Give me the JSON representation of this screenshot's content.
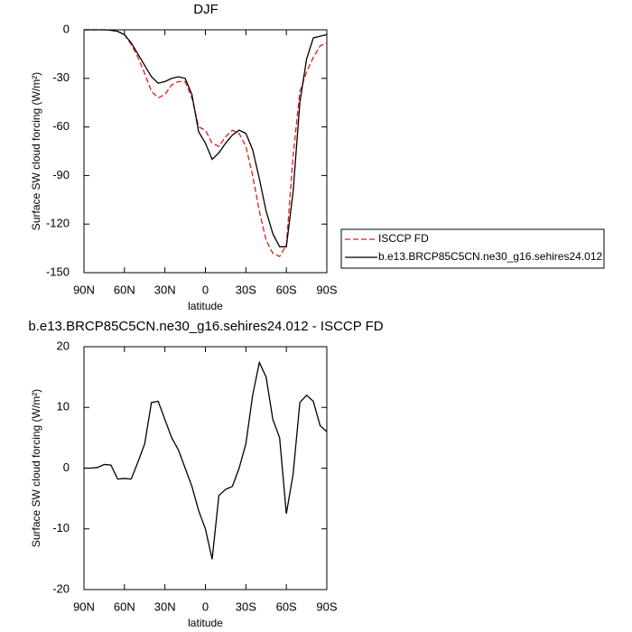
{
  "chart_data": [
    {
      "type": "line",
      "title": "DJF",
      "x_label": "latitude",
      "y_label": "Surface SW cloud forcing (W/m²)",
      "x": [
        90,
        85,
        80,
        75,
        70,
        65,
        60,
        55,
        50,
        45,
        40,
        35,
        30,
        25,
        20,
        15,
        10,
        5,
        0,
        -5,
        -10,
        -15,
        -20,
        -25,
        -30,
        -35,
        -40,
        -45,
        -50,
        -55,
        -60,
        -65,
        -70,
        -75,
        -80,
        -85,
        -90
      ],
      "series": [
        {
          "name": "ISCCP FD",
          "color": "#e41a1c",
          "dash": true,
          "values": [
            0,
            0,
            0,
            0,
            -0.3,
            -1,
            -3,
            -9,
            -17,
            -27,
            -38,
            -42,
            -40,
            -34,
            -32,
            -32,
            -42,
            -60,
            -62,
            -70,
            -72,
            -66,
            -62,
            -64,
            -72,
            -90,
            -112,
            -130,
            -138,
            -140,
            -133,
            -78,
            -38,
            -26,
            -17,
            -10,
            -8
          ]
        },
        {
          "name": "b.e13.BRCP85C5CN.ne30_g16.sehires24.012",
          "color": "#000000",
          "dash": false,
          "values": [
            0,
            0,
            0,
            0,
            -0.3,
            -1,
            -3,
            -8,
            -15,
            -22,
            -29,
            -33,
            -32,
            -30,
            -29,
            -30,
            -40,
            -63,
            -70,
            -80,
            -76,
            -70,
            -65,
            -62,
            -64,
            -74,
            -92,
            -112,
            -126,
            -134,
            -134,
            -100,
            -45,
            -18,
            -5,
            -4,
            -3
          ]
        }
      ],
      "xlim": [
        90,
        -90
      ],
      "xticks": [
        {
          "value": 90,
          "label": "90N"
        },
        {
          "value": 60,
          "label": "60N"
        },
        {
          "value": 30,
          "label": "30N"
        },
        0,
        {
          "value": -30,
          "label": "30S"
        },
        {
          "value": -60,
          "label": "60S"
        },
        {
          "value": -90,
          "label": "90S"
        }
      ],
      "ylim": [
        -150,
        0
      ],
      "yticks": [
        -150,
        -120,
        -90,
        -60,
        -30,
        0
      ],
      "legend": true
    },
    {
      "type": "line",
      "title": "b.e13.BRCP85C5CN.ne30_g16.sehires24.012 - ISCCP FD",
      "x_label": "latitude",
      "y_label": "Surface SW cloud forcing (W/m²)",
      "x": [
        90,
        85,
        80,
        75,
        70,
        65,
        60,
        55,
        50,
        45,
        40,
        35,
        30,
        25,
        20,
        15,
        10,
        5,
        0,
        -5,
        -10,
        -15,
        -20,
        -25,
        -30,
        -35,
        -40,
        -45,
        -50,
        -55,
        -60,
        -65,
        -70,
        -75,
        -80,
        -85,
        -90
      ],
      "series": [
        {
          "color": "#000000",
          "dash": false,
          "values": [
            0,
            0,
            0.1,
            0.6,
            0.5,
            -1.8,
            -1.7,
            -1.8,
            1,
            4,
            10.8,
            11,
            8,
            5,
            3,
            0,
            -3,
            -7,
            -10,
            -15,
            -4.5,
            -3.5,
            -3,
            0,
            4,
            12,
            17.4,
            15,
            8,
            5,
            -7.5,
            -1,
            10.8,
            12,
            11,
            7,
            6
          ]
        }
      ],
      "xlim": [
        90,
        -90
      ],
      "xticks": [
        {
          "value": 90,
          "label": "90N"
        },
        {
          "value": 60,
          "label": "60N"
        },
        {
          "value": 30,
          "label": "30N"
        },
        0,
        {
          "value": -30,
          "label": "30S"
        },
        {
          "value": -60,
          "label": "60S"
        },
        {
          "value": -90,
          "label": "90S"
        }
      ],
      "ylim": [
        -20,
        20
      ],
      "yticks": [
        -20,
        -10,
        0,
        10,
        20
      ],
      "legend": false
    }
  ]
}
